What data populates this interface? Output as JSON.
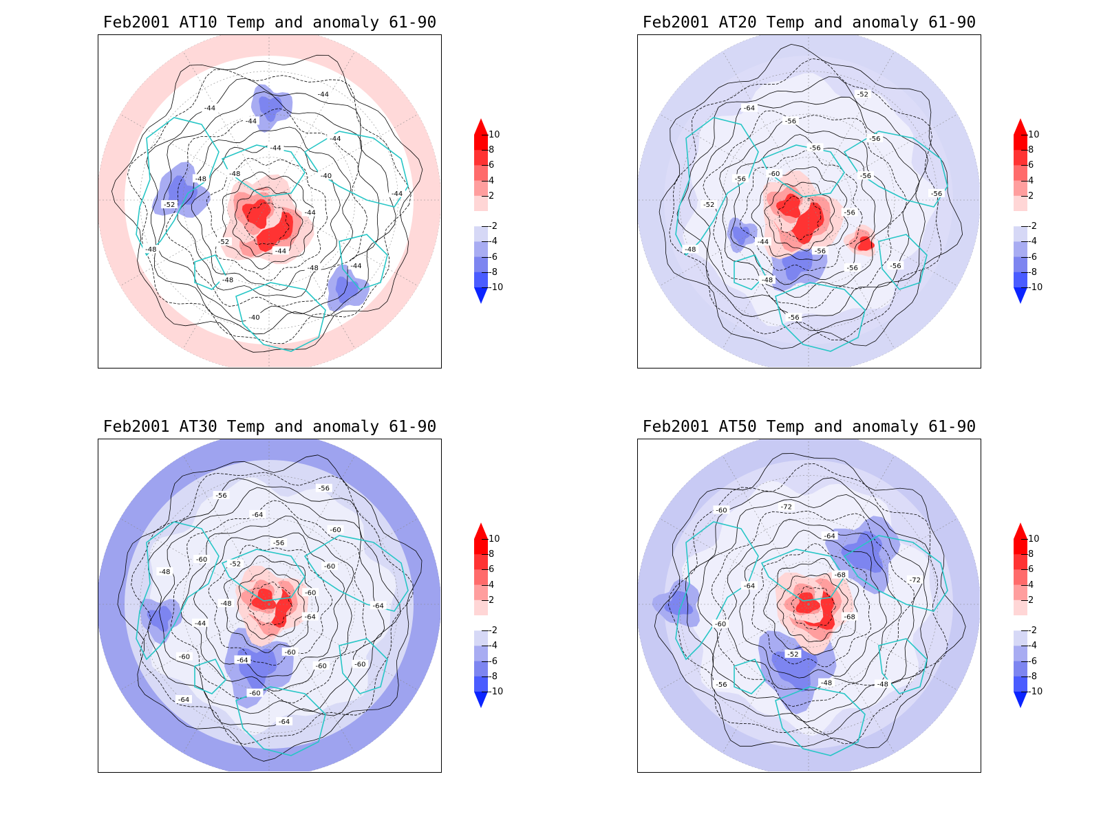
{
  "colors": {
    "coastline": "#27c6c6",
    "contour": "#000000",
    "frame": "#000000",
    "anomaly_scale": [
      "#0b24ff",
      "#4a5cff",
      "#7d85f0",
      "#a8acf2",
      "#d6d8f6",
      "#ffffff",
      "#ffd6d6",
      "#ff9e9e",
      "#ff6b6b",
      "#ff3333",
      "#ff0000"
    ]
  },
  "colorbar": {
    "labels": [
      "10",
      "8",
      "6",
      "4",
      "2",
      "-2",
      "-4",
      "-6",
      "-8",
      "-10"
    ]
  },
  "panels": [
    {
      "title": "Feb2001 AT10 Temp and anomaly 61-90",
      "background": "#ffffff",
      "ring": "#ffd9d9",
      "contour_labels": [
        "-44",
        "-44",
        "-48",
        "-44",
        "-40",
        "-48",
        "-52",
        "-48",
        "-52",
        "-48",
        "-48",
        "-44",
        "-44",
        "-44",
        "-44",
        "-44",
        "-40",
        "-44"
      ]
    },
    {
      "title": "Feb2001 AT20 Temp and anomaly 61-90",
      "background": "#dcdcf8",
      "ring": "#d6d8f6",
      "contour_labels": [
        "-56",
        "-56",
        "-56",
        "-56",
        "-56",
        "-48",
        "-44",
        "-48",
        "-52",
        "-56",
        "-60",
        "-64",
        "-56",
        "-56",
        "-52",
        "-56",
        "-56",
        "-56"
      ]
    },
    {
      "title": "Feb2001 AT30 Temp and anomaly 61-90",
      "background": "#d8daf6",
      "ring": "#9ea3ef",
      "contour_labels": [
        "-64",
        "-60",
        "-60",
        "-60",
        "-64",
        "-60",
        "-64",
        "-64",
        "-60",
        "-44",
        "-48",
        "-48",
        "-60",
        "-52",
        "-56",
        "-64",
        "-56",
        "-56",
        "-60",
        "-60",
        "-60",
        "-64"
      ]
    },
    {
      "title": "Feb2001 AT50 Temp and anomaly 61-90",
      "background": "#dcdcf8",
      "ring": "#c8caf4",
      "contour_labels": [
        "-68",
        "-48",
        "-48",
        "-52",
        "-56",
        "-60",
        "-64",
        "-60",
        "-72",
        "-64",
        "-68",
        "-72"
      ]
    }
  ]
}
